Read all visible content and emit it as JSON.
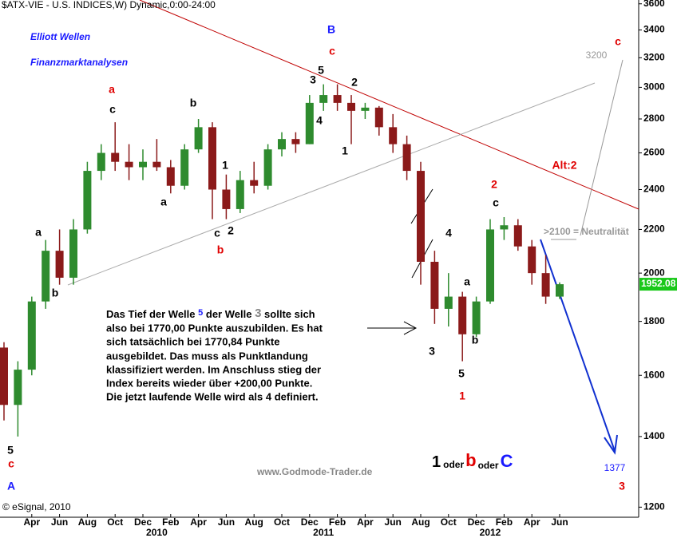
{
  "chart_data": {
    "type": "candlestick",
    "title": "$ATX-VIE - U.S. INDICES,W) Dynamic,0:00-24:00",
    "heading": [
      "Elliott Wellen",
      "Finanzmarktanalysen"
    ],
    "copyright": "© eSignal, 2010",
    "watermark": "www.Godmode-Trader.de",
    "y_log": true,
    "ylim": [
      1180,
      3630
    ],
    "yticks": [
      1200,
      1400,
      1600,
      1800,
      2000,
      2200,
      2400,
      2600,
      2800,
      3000,
      3200,
      3400,
      3600
    ],
    "x": [
      "2009-02",
      "2009-03",
      "2009-04",
      "2009-05",
      "2009-06",
      "2009-07",
      "2009-08",
      "2009-09",
      "2009-10",
      "2009-11",
      "2009-12",
      "2010-01",
      "2010-02",
      "2010-03",
      "2010-04",
      "2010-05",
      "2010-06",
      "2010-07",
      "2010-08",
      "2010-09",
      "2010-10",
      "2010-11",
      "2010-12",
      "2011-01",
      "2011-02",
      "2011-03",
      "2011-04",
      "2011-05",
      "2011-06",
      "2011-07",
      "2011-08",
      "2011-09",
      "2011-10",
      "2011-11",
      "2011-12",
      "2012-01",
      "2012-02",
      "2012-03",
      "2012-04",
      "2012-05",
      "2012-06"
    ],
    "open": [
      1700,
      1500,
      1620,
      1880,
      2100,
      1980,
      2200,
      2500,
      2600,
      2550,
      2520,
      2550,
      2520,
      2420,
      2620,
      2750,
      2400,
      2300,
      2450,
      2420,
      2620,
      2680,
      2650,
      2900,
      2950,
      2900,
      2850,
      2870,
      2750,
      2650,
      2500,
      2050,
      1850,
      1900,
      1750,
      1880,
      2200,
      2220,
      2120,
      2000,
      1900
    ],
    "high": [
      1720,
      1650,
      1900,
      2150,
      2200,
      2250,
      2550,
      2650,
      2780,
      2650,
      2620,
      2680,
      2560,
      2650,
      2800,
      2780,
      2480,
      2500,
      2550,
      2650,
      2720,
      2720,
      2950,
      3020,
      3020,
      2950,
      2900,
      2880,
      2830,
      2700,
      2550,
      2100,
      2000,
      1920,
      1900,
      2250,
      2260,
      2250,
      2150,
      2080,
      1960
    ],
    "low": [
      1450,
      1400,
      1600,
      1850,
      1950,
      1950,
      2180,
      2450,
      2500,
      2450,
      2450,
      2500,
      2380,
      2400,
      2600,
      2250,
      2250,
      2280,
      2380,
      2400,
      2580,
      2600,
      2650,
      2850,
      2850,
      2650,
      2800,
      2700,
      2600,
      2450,
      1950,
      1790,
      1780,
      1650,
      1740,
      1870,
      2150,
      2100,
      1950,
      1870,
      1890
    ],
    "close": [
      1500,
      1620,
      1880,
      2100,
      1980,
      2200,
      2500,
      2600,
      2550,
      2520,
      2550,
      2520,
      2420,
      2620,
      2750,
      2400,
      2300,
      2450,
      2420,
      2620,
      2680,
      2650,
      2900,
      2950,
      2900,
      2850,
      2870,
      2750,
      2650,
      2500,
      2050,
      1850,
      1900,
      1750,
      1880,
      2200,
      2220,
      2120,
      2000,
      1900,
      1952.08
    ],
    "up_color": "#2e8b2e",
    "down_color": "#8b1a1a",
    "xticks": [
      {
        "value": "2009-04",
        "label": "Apr"
      },
      {
        "value": "2009-06",
        "label": "Jun"
      },
      {
        "value": "2009-08",
        "label": "Aug"
      },
      {
        "value": "2009-10",
        "label": "Oct"
      },
      {
        "value": "2009-12",
        "label": "Dec"
      },
      {
        "value": "2010-02",
        "label": "Feb"
      },
      {
        "value": "2010-04",
        "label": "Apr"
      },
      {
        "value": "2010-06",
        "label": "Jun"
      },
      {
        "value": "2010-08",
        "label": "Aug"
      },
      {
        "value": "2010-10",
        "label": "Oct"
      },
      {
        "value": "2010-12",
        "label": "Dec"
      },
      {
        "value": "2011-02",
        "label": "Feb"
      },
      {
        "value": "2011-04",
        "label": "Apr"
      },
      {
        "value": "2011-06",
        "label": "Jun"
      },
      {
        "value": "2011-08",
        "label": "Aug"
      },
      {
        "value": "2011-10",
        "label": "Oct"
      },
      {
        "value": "2011-12",
        "label": "Dec"
      },
      {
        "value": "2012-02",
        "label": "Feb"
      },
      {
        "value": "2012-04",
        "label": "Apr"
      },
      {
        "value": "2012-06",
        "label": "Jun"
      }
    ],
    "year_labels": [
      {
        "value": "2010-01",
        "label": "2010"
      },
      {
        "value": "2011-01",
        "label": "2011"
      },
      {
        "value": "2012-01",
        "label": "2012"
      }
    ],
    "annotations": [
      "B",
      "c",
      "5",
      "3",
      "2",
      "4",
      "1",
      "a",
      "c",
      "b",
      "a",
      "1",
      "c",
      "2",
      "b",
      "a",
      "b",
      "5",
      "c",
      "A",
      "2",
      "c",
      "4",
      "a",
      "b",
      "3",
      "5",
      "1",
      "Alt:2",
      "3200",
      ">2100 = Neutralität",
      "c",
      "1377",
      "3"
    ],
    "note_first_line": [
      "Das Tief der Welle",
      "5",
      "der Welle",
      "3",
      "sollte sich"
    ],
    "note_lines": [
      "also bei 1770,00 Punkte auszubilden. Es hat",
      "sich tatsächlich bei 1770,84 Punkte",
      "ausgebildet. Das muss als Punktlandung",
      "klassifiziert werden. Im Anschluss stieg der",
      "Index bereits wieder über +200,00 Punkte.",
      "Die jetzt laufende Welle wird als 4 definiert."
    ],
    "scenario": [
      "1",
      "oder",
      "b",
      "oder",
      "C"
    ]
  }
}
